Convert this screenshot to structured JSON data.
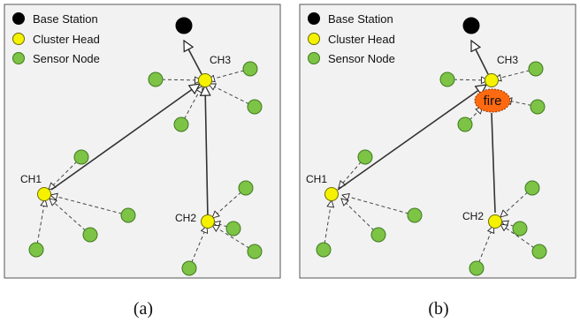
{
  "legend": {
    "base_station": "Base Station",
    "cluster_head": "Cluster Head",
    "sensor_node": "Sensor Node"
  },
  "labels": {
    "ch1": "CH1",
    "ch2": "CH2",
    "ch3": "CH3"
  },
  "panels": [
    {
      "caption": "(a)"
    },
    {
      "caption": "(b)",
      "event": "fire"
    }
  ],
  "colors": {
    "base_station": "#000000",
    "cluster_head": "#f5f200",
    "sensor_node": "#7dc346",
    "fire": "#ff6a10",
    "panel_bg": "#f2f2f2"
  }
}
